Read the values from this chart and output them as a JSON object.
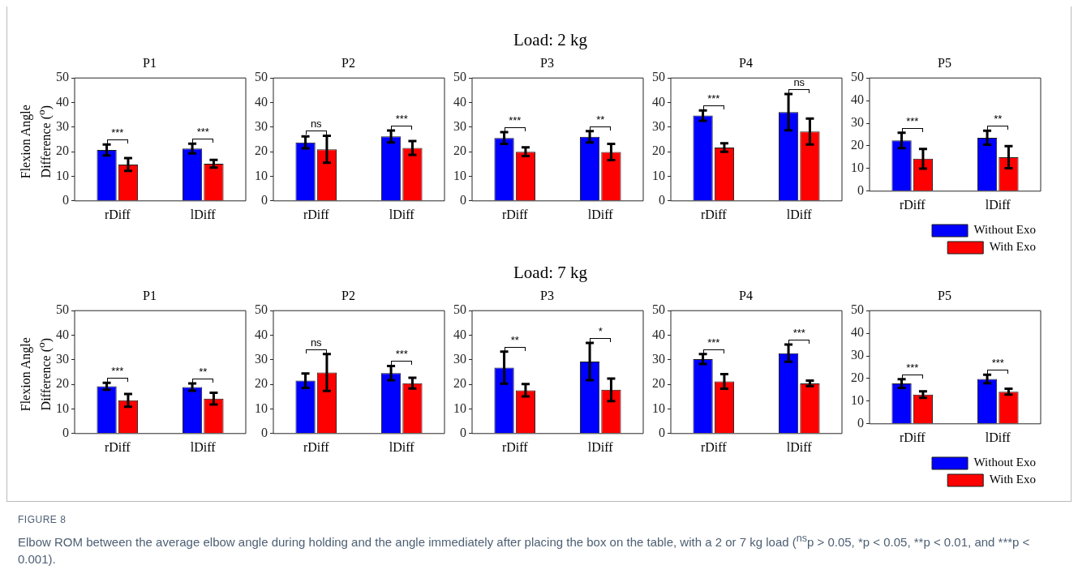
{
  "chart_data": [
    {
      "type": "bar",
      "title": "P1",
      "ylabel": "Flexion Angle Difference ($^{o}$)",
      "categories": [
        "rDiff",
        "lDiff"
      ],
      "ylim": [
        0,
        50
      ],
      "yticks": [
        0,
        10,
        20,
        30,
        40,
        50
      ],
      "series": [
        {
          "color": "#0000ff",
          "values": [
            20.7,
            21.3
          ],
          "errors": [
            2.2,
            2.0
          ]
        },
        {
          "color": "#ff0000",
          "values": [
            14.8,
            15.1
          ],
          "errors": [
            2.6,
            1.6
          ]
        }
      ],
      "annotations": [
        "***",
        "***"
      ]
    },
    {
      "type": "bar",
      "title": "P2",
      "categories": [
        "rDiff",
        "lDiff"
      ],
      "ylim": [
        0,
        50
      ],
      "yticks": [
        0,
        10,
        20,
        30,
        40,
        50
      ],
      "series": [
        {
          "color": "#0000ff",
          "values": [
            23.8,
            26.2
          ],
          "errors": [
            2.4,
            2.4
          ]
        },
        {
          "color": "#ff0000",
          "values": [
            21.0,
            21.5
          ],
          "errors": [
            5.5,
            2.8
          ]
        }
      ],
      "annotations": [
        "ns",
        "***"
      ]
    },
    {
      "type": "bar",
      "title": "P3",
      "categories": [
        "rDiff",
        "lDiff"
      ],
      "ylim": [
        0,
        50
      ],
      "yticks": [
        0,
        10,
        20,
        30,
        40,
        50
      ],
      "series": [
        {
          "color": "#0000ff",
          "values": [
            25.6,
            26.1
          ],
          "errors": [
            2.4,
            2.3
          ]
        },
        {
          "color": "#ff0000",
          "values": [
            20.0,
            19.9
          ],
          "errors": [
            1.8,
            3.3
          ]
        }
      ],
      "subtitle": "Load: 2 kg",
      "annotations": [
        "***",
        "**"
      ]
    },
    {
      "type": "bar",
      "title": "P4",
      "categories": [
        "rDiff",
        "lDiff"
      ],
      "ylim": [
        0,
        50
      ],
      "yticks": [
        0,
        10,
        20,
        30,
        40,
        50
      ],
      "series": [
        {
          "color": "#0000ff",
          "values": [
            34.7,
            36.1
          ],
          "errors": [
            2.1,
            7.4
          ]
        },
        {
          "color": "#ff0000",
          "values": [
            21.7,
            28.2
          ],
          "errors": [
            1.7,
            5.3
          ]
        }
      ],
      "annotations": [
        "***",
        "ns"
      ]
    },
    {
      "type": "bar",
      "title": "P5",
      "categories": [
        "rDiff",
        "lDiff"
      ],
      "ylim": [
        0,
        50
      ],
      "yticks": [
        0,
        10,
        20,
        30,
        40,
        50
      ],
      "legend": "bottom right",
      "series": [
        {
          "name": "Without Exo",
          "color": "#0000ff",
          "values": [
            22.4,
            23.6
          ],
          "errors": [
            3.4,
            3.1
          ]
        },
        {
          "name": "With Exo",
          "color": "#ff0000",
          "values": [
            14.3,
            15.0
          ],
          "errors": [
            4.3,
            4.9
          ]
        }
      ],
      "annotations": [
        "***",
        "**"
      ]
    },
    {
      "type": "bar",
      "title": "P1",
      "ylabel": "Flexion Angle Difference ($^{o}$)",
      "categories": [
        "rDiff",
        "lDiff"
      ],
      "ylim": [
        0,
        50
      ],
      "yticks": [
        0,
        10,
        20,
        30,
        40,
        50
      ],
      "series": [
        {
          "color": "#0000ff",
          "values": [
            19.2,
            18.9
          ],
          "errors": [
            1.4,
            1.5
          ]
        },
        {
          "color": "#ff0000",
          "values": [
            13.5,
            14.2
          ],
          "errors": [
            2.6,
            2.4
          ]
        }
      ],
      "annotations": [
        "***",
        "**"
      ]
    },
    {
      "type": "bar",
      "title": "P2",
      "categories": [
        "rDiff",
        "lDiff"
      ],
      "ylim": [
        0,
        50
      ],
      "yticks": [
        0,
        10,
        20,
        30,
        40,
        50
      ],
      "series": [
        {
          "color": "#0000ff",
          "values": [
            21.5,
            24.6
          ],
          "errors": [
            2.9,
            2.9
          ]
        },
        {
          "color": "#ff0000",
          "values": [
            24.8,
            20.5
          ],
          "errors": [
            7.5,
            2.2
          ]
        }
      ],
      "annotations": [
        "ns",
        "***"
      ]
    },
    {
      "type": "bar",
      "title": "P3",
      "categories": [
        "rDiff",
        "lDiff"
      ],
      "ylim": [
        0,
        50
      ],
      "yticks": [
        0,
        10,
        20,
        30,
        40,
        50
      ],
      "series": [
        {
          "color": "#0000ff",
          "values": [
            26.8,
            29.3
          ],
          "errors": [
            6.5,
            7.6
          ]
        },
        {
          "color": "#ff0000",
          "values": [
            17.6,
            17.8
          ],
          "errors": [
            2.5,
            4.6
          ]
        }
      ],
      "subtitle": "Load: 7 kg",
      "annotations": [
        "**",
        "*"
      ]
    },
    {
      "type": "bar",
      "title": "P4",
      "categories": [
        "rDiff",
        "lDiff"
      ],
      "ylim": [
        0,
        50
      ],
      "yticks": [
        0,
        10,
        20,
        30,
        40,
        50
      ],
      "series": [
        {
          "color": "#0000ff",
          "values": [
            30.3,
            32.7
          ],
          "errors": [
            2.0,
            3.5
          ]
        },
        {
          "color": "#ff0000",
          "values": [
            21.2,
            20.4
          ],
          "errors": [
            3.0,
            1.1
          ]
        }
      ],
      "annotations": [
        "***",
        "***"
      ]
    },
    {
      "type": "bar",
      "title": "P5",
      "categories": [
        "rDiff",
        "lDiff"
      ],
      "ylim": [
        0,
        50
      ],
      "yticks": [
        0,
        10,
        20,
        30,
        40,
        50
      ],
      "legend": "bottom right",
      "series": [
        {
          "name": "Without Exo",
          "color": "#0000ff",
          "values": [
            17.8,
            19.8
          ],
          "errors": [
            1.9,
            1.9
          ]
        },
        {
          "name": "With Exo",
          "color": "#ff0000",
          "values": [
            12.9,
            14.2
          ],
          "errors": [
            1.4,
            1.3
          ]
        }
      ],
      "annotations": [
        "***",
        "***",
        "FIGURE 8",
        "Elbow ROM between the average elbow angle during holding and the angle immediately after placing the box on the table, with a 2 or 7 kg load ($^{ns}$p > 0.05, *p < 0.05,",
        "**p < 0.01, and",
        "***p < 0.001)."
      ]
    }
  ]
}
